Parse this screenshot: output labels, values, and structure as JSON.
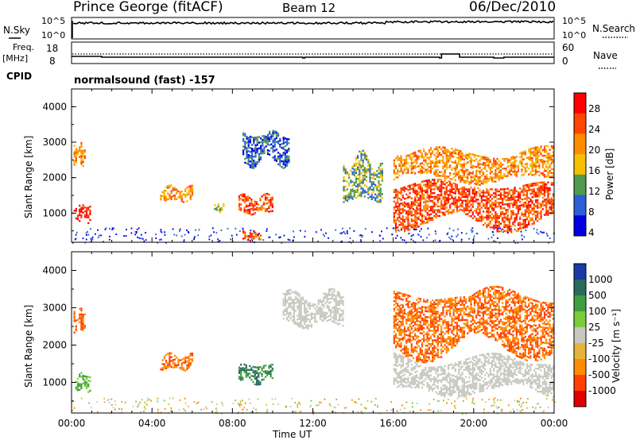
{
  "header": {
    "station": "Prince George (fitACF)",
    "beam": "Beam 12",
    "date": "06/Dec/2010"
  },
  "panels": {
    "nsky": {
      "left_label": "N.Sky",
      "right_label": "N.Search",
      "left_ticks": [
        "10^5",
        "10^0"
      ],
      "right_ticks": [
        "10^5",
        "10^0"
      ]
    },
    "freq": {
      "left_label_1": "Freq.",
      "left_label_2": "[MHz]",
      "right_label": "Nave",
      "left_ticks": [
        "18",
        "8"
      ],
      "right_ticks": [
        "60",
        "0"
      ]
    },
    "cpid": {
      "label": "CPID",
      "value": "normalsound (fast) -157"
    }
  },
  "colorbars": {
    "power": {
      "title": "Power [dB]",
      "ticks": [
        "28",
        "24",
        "20",
        "16",
        "12",
        "8",
        "4"
      ],
      "colors": [
        "#ff0000",
        "#ff4500",
        "#ff8c00",
        "#f5c000",
        "#4e9a4e",
        "#2c5fd6",
        "#0000e0"
      ]
    },
    "velocity": {
      "title": "Velocity [m s⁻¹]",
      "ticks": [
        "1000",
        "500",
        "100",
        "25",
        "-25",
        "-100",
        "-500",
        "-1000"
      ],
      "colors": [
        "#1a3aa8",
        "#2a6a5a",
        "#3f9e3f",
        "#7bcc3a",
        "#c8c8c0",
        "#e6b43a",
        "#ff8c00",
        "#ff4000",
        "#e00000"
      ]
    }
  },
  "chart_data": [
    {
      "type": "heatmap",
      "title": "Power",
      "xlabel": "Time UT",
      "ylabel": "Slant Range [km]",
      "xticks": [
        "00:00",
        "04:00",
        "08:00",
        "12:00",
        "16:00",
        "20:00",
        "00:00"
      ],
      "yticks": [
        "1000",
        "2000",
        "3000",
        "4000"
      ],
      "xlim_hours": [
        0,
        24
      ],
      "ylim_km": [
        180,
        4500
      ],
      "echo_regions": [
        {
          "t0": 0.1,
          "t1": 0.9,
          "r0": 800,
          "r1": 1250,
          "level": 28
        },
        {
          "t0": 0.1,
          "t1": 0.7,
          "r0": 2400,
          "r1": 3000,
          "level": 20
        },
        {
          "t0": 4.4,
          "t1": 6.0,
          "r0": 1350,
          "r1": 1750,
          "level": 20
        },
        {
          "t0": 7.0,
          "t1": 7.6,
          "r0": 1050,
          "r1": 1300,
          "level": 16
        },
        {
          "t0": 8.3,
          "t1": 10.0,
          "r0": 1000,
          "r1": 1500,
          "level": 24
        },
        {
          "t0": 8.5,
          "t1": 9.4,
          "r0": 250,
          "r1": 500,
          "level": 24
        },
        {
          "t0": 8.5,
          "t1": 10.8,
          "r0": 2400,
          "r1": 3300,
          "level": 8
        },
        {
          "t0": 13.5,
          "t1": 15.5,
          "r0": 1300,
          "r1": 2600,
          "level": 12
        },
        {
          "t0": 16.0,
          "t1": 24.0,
          "r0": 650,
          "r1": 1900,
          "level": 24
        },
        {
          "t0": 16.0,
          "t1": 24.0,
          "r0": 1900,
          "r1": 2800,
          "level": 20
        }
      ]
    },
    {
      "type": "heatmap",
      "title": "Velocity",
      "xlabel": "Time UT",
      "ylabel": "Slant Range [km]",
      "xticks": [
        "00:00",
        "04:00",
        "08:00",
        "12:00",
        "16:00",
        "20:00",
        "00:00"
      ],
      "yticks": [
        "1000",
        "2000",
        "3000",
        "4000"
      ],
      "xlim_hours": [
        0,
        24
      ],
      "ylim_km": [
        180,
        4500
      ],
      "echo_regions": [
        {
          "t0": 0.1,
          "t1": 0.9,
          "r0": 800,
          "r1": 1250,
          "velocity": 100
        },
        {
          "t0": 0.1,
          "t1": 0.7,
          "r0": 2400,
          "r1": 3000,
          "velocity": -500
        },
        {
          "t0": 4.4,
          "t1": 6.0,
          "r0": 1350,
          "r1": 1750,
          "velocity": -500
        },
        {
          "t0": 8.3,
          "t1": 10.0,
          "r0": 1000,
          "r1": 1500,
          "velocity": 500
        },
        {
          "t0": 10.5,
          "t1": 13.5,
          "r0": 2500,
          "r1": 3400,
          "velocity": 0
        },
        {
          "t0": 16.0,
          "t1": 24.0,
          "r0": 700,
          "r1": 1700,
          "velocity": 0
        },
        {
          "t0": 16.0,
          "t1": 24.0,
          "r0": 1800,
          "r1": 3500,
          "velocity": -500
        }
      ]
    }
  ]
}
